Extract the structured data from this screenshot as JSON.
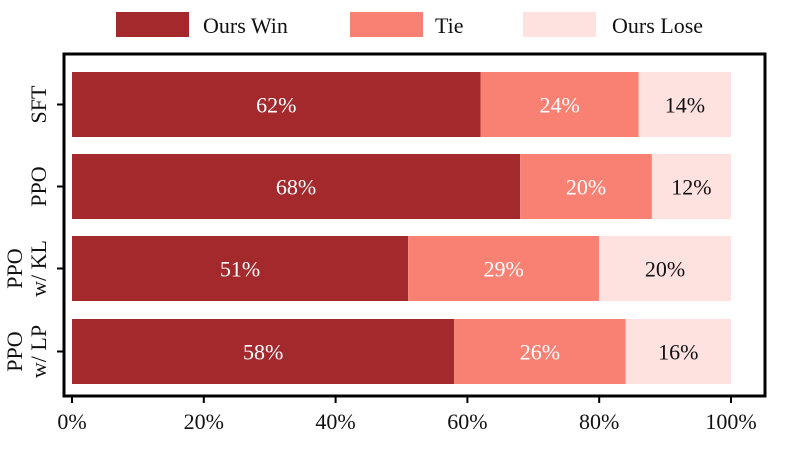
{
  "chart_data": {
    "type": "bar",
    "orientation": "horizontal",
    "stacked": true,
    "title": "",
    "xlabel": "",
    "ylabel": "",
    "xlim": [
      0,
      100
    ],
    "x_ticks": [
      "0%",
      "20%",
      "40%",
      "60%",
      "80%",
      "100%"
    ],
    "categories": [
      [
        "SFT"
      ],
      [
        "PPO"
      ],
      [
        "PPO",
        "w/ KL"
      ],
      [
        "PPO",
        "w/ LP"
      ]
    ],
    "series": [
      {
        "name": "Ours Win",
        "color": "#a3292c",
        "label_color": "#ffffff",
        "values": [
          62,
          68,
          51,
          58
        ],
        "labels": [
          "62%",
          "68%",
          "51%",
          "58%"
        ]
      },
      {
        "name": "Tie",
        "color": "#f88174",
        "label_color": "#ffffff",
        "values": [
          24,
          20,
          29,
          26
        ],
        "labels": [
          "24%",
          "20%",
          "29%",
          "26%"
        ]
      },
      {
        "name": "Ours Lose",
        "color": "#fde2df",
        "label_color": "#111111",
        "values": [
          14,
          12,
          20,
          16
        ],
        "labels": [
          "14%",
          "12%",
          "20%",
          "16%"
        ]
      }
    ],
    "legend_position": "top",
    "grid": false
  }
}
